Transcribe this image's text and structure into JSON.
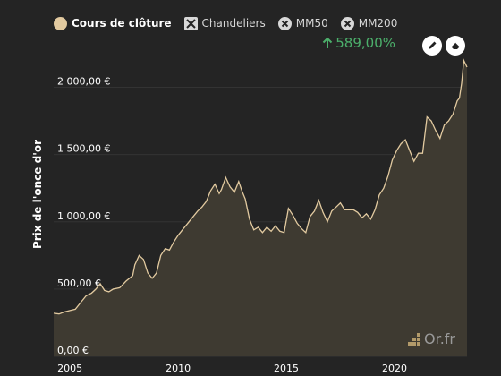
{
  "legend": {
    "items": [
      {
        "label": "Cours de clôture",
        "state": "active"
      },
      {
        "label": "Chandeliers",
        "state": "off"
      },
      {
        "label": "MM50",
        "state": "off"
      },
      {
        "label": "MM200",
        "state": "off"
      }
    ]
  },
  "performance": {
    "arrow": "up-arrow-icon",
    "value": "589,00%"
  },
  "toolbar": {
    "buttons": [
      "pencil-icon",
      "eraser-icon"
    ]
  },
  "watermark": {
    "text": "Or.fr"
  },
  "colors": {
    "line": "#e2caa0",
    "area": "#3e3a31",
    "positive": "#4caf6b",
    "background": "#242424"
  },
  "chart_data": {
    "type": "area",
    "ylabel": "Prix de l'once d'or",
    "yticks": [
      "0,00 €",
      "500,00 €",
      "1 000,00 €",
      "1 500,00 €",
      "2 000,00 €"
    ],
    "ytick_values": [
      0,
      500,
      1000,
      1500,
      2000
    ],
    "xticks": [
      "2005",
      "2010",
      "2015",
      "2020"
    ],
    "xtick_values": [
      2005,
      2010,
      2015,
      2020
    ],
    "xlim": [
      2004.25,
      2023.35
    ],
    "ylim": [
      0,
      2250
    ],
    "grid": "horizontal",
    "x": [
      2004.25,
      2004.5,
      2004.75,
      2005.0,
      2005.25,
      2005.5,
      2005.75,
      2006.0,
      2006.2,
      2006.4,
      2006.6,
      2006.8,
      2007.0,
      2007.3,
      2007.6,
      2007.9,
      2008.0,
      2008.2,
      2008.4,
      2008.6,
      2008.8,
      2009.0,
      2009.2,
      2009.4,
      2009.6,
      2009.8,
      2010.0,
      2010.3,
      2010.6,
      2010.9,
      2011.1,
      2011.3,
      2011.5,
      2011.7,
      2011.9,
      2012.0,
      2012.2,
      2012.4,
      2012.6,
      2012.8,
      2012.95,
      2013.1,
      2013.3,
      2013.5,
      2013.7,
      2013.9,
      2014.1,
      2014.3,
      2014.5,
      2014.7,
      2014.9,
      2015.1,
      2015.3,
      2015.5,
      2015.7,
      2015.9,
      2016.1,
      2016.3,
      2016.5,
      2016.7,
      2016.9,
      2017.1,
      2017.3,
      2017.5,
      2017.7,
      2017.9,
      2018.1,
      2018.3,
      2018.5,
      2018.7,
      2018.9,
      2019.1,
      2019.3,
      2019.5,
      2019.7,
      2019.9,
      2020.1,
      2020.3,
      2020.5,
      2020.7,
      2020.9,
      2021.1,
      2021.3,
      2021.5,
      2021.7,
      2021.9,
      2022.1,
      2022.3,
      2022.5,
      2022.7,
      2022.9,
      2023.0,
      2023.1,
      2023.2,
      2023.35
    ],
    "values": [
      320,
      315,
      330,
      340,
      350,
      400,
      450,
      470,
      500,
      540,
      490,
      480,
      500,
      510,
      560,
      600,
      680,
      750,
      720,
      620,
      580,
      620,
      750,
      800,
      790,
      850,
      900,
      960,
      1020,
      1080,
      1110,
      1150,
      1230,
      1280,
      1210,
      1240,
      1330,
      1260,
      1220,
      1300,
      1230,
      1170,
      1020,
      940,
      960,
      920,
      960,
      930,
      970,
      930,
      920,
      1100,
      1050,
      990,
      950,
      920,
      1040,
      1080,
      1160,
      1070,
      1000,
      1080,
      1110,
      1140,
      1090,
      1090,
      1090,
      1070,
      1030,
      1060,
      1020,
      1090,
      1200,
      1250,
      1340,
      1460,
      1530,
      1580,
      1610,
      1530,
      1450,
      1510,
      1510,
      1780,
      1750,
      1680,
      1620,
      1720,
      1750,
      1800,
      1900,
      1920,
      2030,
      2200,
      2150
    ]
  }
}
